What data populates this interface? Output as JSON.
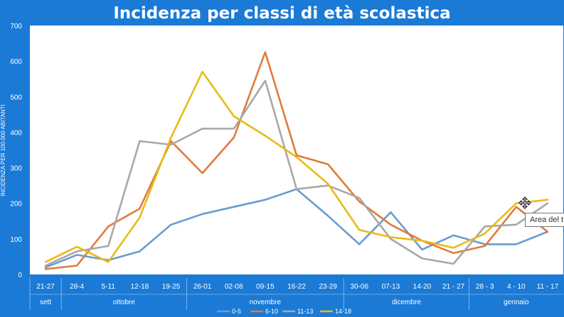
{
  "tooltip": "Area del t",
  "chart_data": {
    "type": "line",
    "title": "Incidenza per classi di età scolastica",
    "ylabel": "INCIDENZA PER 100.000 ABITANTI",
    "ylim": [
      0,
      700
    ],
    "yticks": [
      0,
      100,
      200,
      300,
      400,
      500,
      600,
      700
    ],
    "categories": [
      "21-27",
      "28-4",
      "5-11",
      "12-18",
      "19-25",
      "26-01",
      "02-08",
      "09-15",
      "16-22",
      "23-29",
      "30-06",
      "07-13",
      "14-20",
      "21 - 27",
      "28 - 3",
      "4 - 10",
      "11 - 17"
    ],
    "months": [
      {
        "label": "sett",
        "start": 0,
        "end": 0
      },
      {
        "label": "ottobre",
        "start": 1,
        "end": 4
      },
      {
        "label": "novembre",
        "start": 5,
        "end": 9
      },
      {
        "label": "dicembre",
        "start": 10,
        "end": 13
      },
      {
        "label": "gennaio",
        "start": 14,
        "end": 16
      }
    ],
    "series": [
      {
        "name": "0-5",
        "color": "#6b9bd1",
        "values": [
          20,
          55,
          40,
          65,
          140,
          170,
          190,
          210,
          240,
          165,
          85,
          175,
          70,
          110,
          85,
          85,
          120
        ]
      },
      {
        "name": "6-10",
        "color": "#e07b3a",
        "values": [
          15,
          25,
          135,
          185,
          375,
          285,
          385,
          625,
          335,
          310,
          205,
          140,
          95,
          60,
          80,
          190,
          120
        ]
      },
      {
        "name": "11-13",
        "color": "#a8a8a8",
        "values": [
          25,
          65,
          80,
          375,
          365,
          410,
          410,
          545,
          240,
          250,
          215,
          100,
          45,
          30,
          135,
          140,
          200
        ]
      },
      {
        "name": "14-18",
        "color": "#e8bb17",
        "values": [
          35,
          78,
          35,
          160,
          385,
          570,
          445,
          390,
          330,
          255,
          125,
          105,
          95,
          75,
          115,
          200,
          210
        ]
      }
    ],
    "grid": false,
    "legend": "bottom"
  }
}
